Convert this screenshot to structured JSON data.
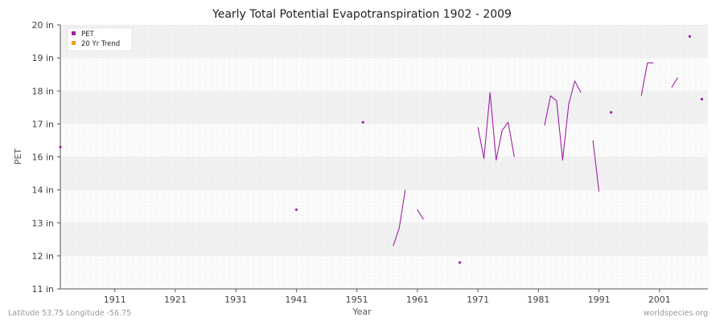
{
  "chart_data": {
    "type": "line",
    "title": "Yearly Total Potential Evapotranspiration 1902 - 2009",
    "xlabel": "Year",
    "ylabel": "PET",
    "xlim": [
      1902,
      2009
    ],
    "x_ticks": [
      1911,
      1921,
      1931,
      1941,
      1951,
      1961,
      1971,
      1981,
      1991,
      2001
    ],
    "y_ticks": [
      {
        "value": 11,
        "label": "11 in"
      },
      {
        "value": 12,
        "label": "12 in"
      },
      {
        "value": 13,
        "label": "13 in"
      },
      {
        "value": 14,
        "label": "14 in"
      },
      {
        "value": 16,
        "label": "16 in"
      },
      {
        "value": 17,
        "label": "17 in"
      },
      {
        "value": 18,
        "label": "18 in"
      },
      {
        "value": 19,
        "label": "19 in"
      },
      {
        "value": 20,
        "label": "20 in"
      }
    ],
    "grid": true,
    "legend_position": "top-left",
    "series": [
      {
        "name": "PET",
        "color": "#a020a8",
        "points": [
          [
            1902,
            16.3
          ],
          [
            1941,
            13.4
          ],
          [
            1952,
            17.05
          ],
          [
            1957,
            12.3
          ],
          [
            1958,
            12.85
          ],
          [
            1959,
            14.0
          ],
          [
            1961,
            13.4
          ],
          [
            1962,
            13.1
          ],
          [
            1968,
            11.8
          ],
          [
            1971,
            16.9
          ],
          [
            1972,
            15.9
          ],
          [
            1973,
            17.95
          ],
          [
            1974,
            15.8
          ],
          [
            1975,
            16.8
          ],
          [
            1976,
            17.05
          ],
          [
            1977,
            16.0
          ],
          [
            1982,
            16.95
          ],
          [
            1983,
            17.85
          ],
          [
            1984,
            17.7
          ],
          [
            1985,
            15.8
          ],
          [
            1986,
            17.6
          ],
          [
            1987,
            18.3
          ],
          [
            1988,
            17.95
          ],
          [
            1990,
            16.5
          ],
          [
            1991,
            13.95
          ],
          [
            1993,
            17.35
          ],
          [
            1998,
            17.85
          ],
          [
            1999,
            18.85
          ],
          [
            2000,
            18.85
          ],
          [
            2003,
            18.1
          ],
          [
            2004,
            18.4
          ],
          [
            2006,
            19.65
          ],
          [
            2008,
            17.75
          ]
        ]
      },
      {
        "name": "20 Yr Trend",
        "color": "#f0a020",
        "points": []
      }
    ]
  },
  "footer": {
    "left": "Latitude 53.75 Longitude -56.75",
    "right": "worldspecies.org"
  }
}
